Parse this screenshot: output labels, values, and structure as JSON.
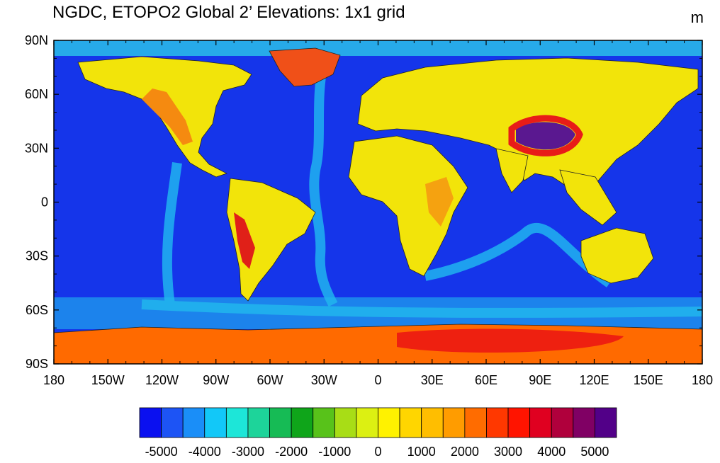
{
  "title": "NGDC, ETOPO2 Global 2’ Elevations: 1x1 grid",
  "units": "m",
  "map": {
    "lat_labels": [
      "90N",
      "60N",
      "30N",
      "0",
      "30S",
      "60S",
      "90S"
    ],
    "lat_values": [
      90,
      60,
      30,
      0,
      -30,
      -60,
      -90
    ],
    "lon_labels": [
      "180",
      "150W",
      "120W",
      "90W",
      "60W",
      "30W",
      "0",
      "30E",
      "60E",
      "90E",
      "120E",
      "150E",
      "180"
    ],
    "lon_values": [
      -180,
      -150,
      -120,
      -90,
      -60,
      -30,
      0,
      30,
      60,
      90,
      120,
      150,
      180
    ]
  },
  "colorbar": {
    "colors": [
      "#0a10f0",
      "#1d54f5",
      "#1a8ef8",
      "#12c8f8",
      "#1de6d8",
      "#1dd49a",
      "#16bb55",
      "#0fa51a",
      "#58c21a",
      "#a8dd16",
      "#dcf012",
      "#fff200",
      "#ffd600",
      "#ffbe00",
      "#ff9c00",
      "#ff6c00",
      "#ff3800",
      "#ff1400",
      "#e00020",
      "#b0003c",
      "#800064",
      "#520088"
    ],
    "tick_labels": [
      "-5000",
      "-4000",
      "-3000",
      "-2000",
      "-1000",
      "0",
      "1000",
      "2000",
      "3000",
      "4000",
      "5000"
    ],
    "tick_values": [
      -5000,
      -4000,
      -3000,
      -2000,
      -1000,
      0,
      1000,
      2000,
      3000,
      4000,
      5000
    ]
  }
}
